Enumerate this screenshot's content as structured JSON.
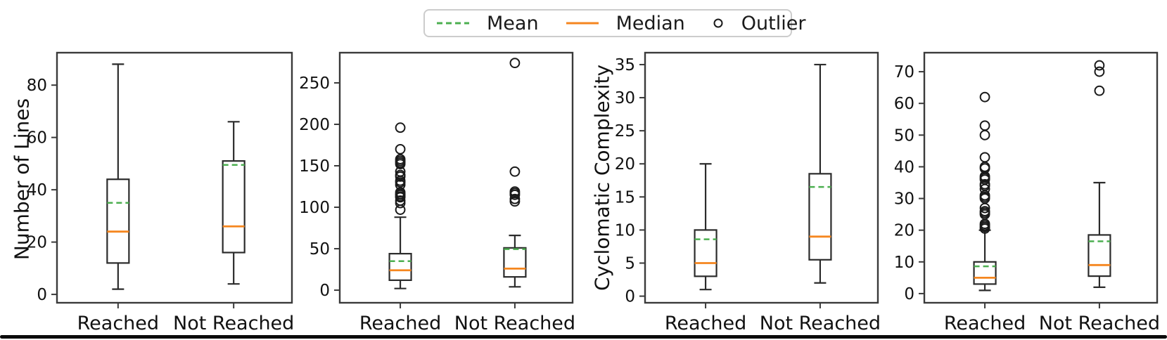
{
  "figure": {
    "background": "#ffffff"
  },
  "colors": {
    "mean_line": "#4caf50",
    "median_line": "#f5861f",
    "box_stroke": "#2b2b2b",
    "axis_stroke": "#3a3a3a",
    "outlier_stroke": "#1a1a1a",
    "text": "#111111",
    "legend_border": "#cccccc",
    "bottom_bar": "#0b0b0b"
  },
  "legend": {
    "items": [
      {
        "label": "Mean",
        "icon": "mean-dashed-line-icon"
      },
      {
        "label": "Median",
        "icon": "median-solid-line-icon"
      },
      {
        "label": "Outlier",
        "icon": "outlier-circle-icon"
      }
    ]
  },
  "chart_data": [
    {
      "type": "boxplot",
      "title": "",
      "xlabel": "",
      "ylabel": "Number of Lines",
      "yticks": [
        0,
        20,
        40,
        60,
        80
      ],
      "ylim": [
        -3.2,
        92.4
      ],
      "grid": false,
      "showfliers": false,
      "categories": [
        "Reached",
        "Not Reached"
      ],
      "series": [
        {
          "category": "Reached",
          "whislo": 2,
          "q1": 12,
          "med": 24,
          "mean": 35,
          "q3": 44,
          "whishi": 88,
          "outliers": []
        },
        {
          "category": "Not Reached",
          "whislo": 4,
          "q1": 16,
          "med": 26,
          "mean": 49.5,
          "q3": 51,
          "whishi": 66,
          "outliers": []
        }
      ]
    },
    {
      "type": "boxplot",
      "title": "",
      "xlabel": "",
      "ylabel": "",
      "yticks": [
        0,
        50,
        100,
        150,
        200,
        250
      ],
      "ylim": [
        -15.2,
        286.4
      ],
      "grid": false,
      "showfliers": true,
      "categories": [
        "Reached",
        "Not Reached"
      ],
      "series": [
        {
          "category": "Reached",
          "whislo": 2,
          "q1": 12,
          "med": 24,
          "mean": 35,
          "q3": 44,
          "whishi": 88,
          "outliers": [
            97,
            105,
            108,
            112,
            113,
            115,
            116,
            118,
            127,
            130,
            132,
            137,
            139,
            143,
            152,
            154,
            156,
            158,
            170,
            196
          ]
        },
        {
          "category": "Not Reached",
          "whislo": 4,
          "q1": 16,
          "med": 26,
          "mean": 49.5,
          "q3": 51,
          "whishi": 66,
          "outliers": [
            107,
            110,
            115,
            117,
            119,
            143,
            274
          ]
        }
      ]
    },
    {
      "type": "boxplot",
      "title": "",
      "xlabel": "",
      "ylabel": "Cyclomatic Complexity",
      "yticks": [
        0,
        5,
        10,
        15,
        20,
        25,
        30,
        35
      ],
      "ylim": [
        -1.0,
        36.8
      ],
      "grid": false,
      "showfliers": false,
      "categories": [
        "Reached",
        "Not Reached"
      ],
      "series": [
        {
          "category": "Reached",
          "whislo": 1,
          "q1": 3,
          "med": 5,
          "mean": 8.6,
          "q3": 10,
          "whishi": 20,
          "outliers": []
        },
        {
          "category": "Not Reached",
          "whislo": 2,
          "q1": 5.5,
          "med": 9,
          "mean": 16.5,
          "q3": 18.5,
          "whishi": 35,
          "outliers": []
        }
      ]
    },
    {
      "type": "boxplot",
      "title": "",
      "xlabel": "",
      "ylabel": "",
      "yticks": [
        0,
        10,
        20,
        30,
        40,
        50,
        60,
        70
      ],
      "ylim": [
        -2.9,
        76.0
      ],
      "grid": false,
      "showfliers": true,
      "categories": [
        "Reached",
        "Not Reached"
      ],
      "series": [
        {
          "category": "Reached",
          "whislo": 1,
          "q1": 3,
          "med": 5,
          "mean": 8.6,
          "q3": 10,
          "whishi": 20,
          "outliers": [
            20.5,
            21,
            21.5,
            22,
            25,
            25.5,
            26,
            27,
            30,
            30.5,
            31,
            33,
            34,
            34.5,
            36,
            36.5,
            37,
            39.5,
            40,
            43,
            50,
            53,
            62
          ]
        },
        {
          "category": "Not Reached",
          "whislo": 2,
          "q1": 5.5,
          "med": 9,
          "mean": 16.5,
          "q3": 18.5,
          "whishi": 35,
          "outliers": [
            64,
            70,
            72
          ]
        }
      ]
    }
  ]
}
